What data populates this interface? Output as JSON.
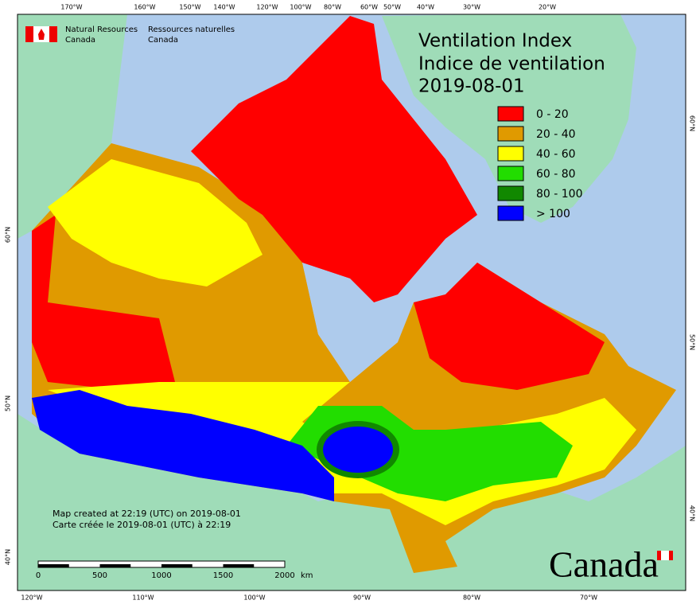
{
  "header": {
    "org_en": [
      "Natural Resources",
      "Canada"
    ],
    "org_fr": [
      "Ressources naturelles",
      "Canada"
    ]
  },
  "title": [
    "Ventilation Index",
    "Indice de ventilation",
    "2019-08-01"
  ],
  "legend": [
    {
      "label": "0 - 20",
      "color": "#ff0000"
    },
    {
      "label": "20 - 40",
      "color": "#e09a00"
    },
    {
      "label": "40 - 60",
      "color": "#ffff00"
    },
    {
      "label": "60 - 80",
      "color": "#22dd00"
    },
    {
      "label": "80 - 100",
      "color": "#118800"
    },
    {
      "label": "> 100",
      "color": "#0000ff"
    }
  ],
  "graticule": {
    "top": [
      "170°W",
      "160°W",
      "150°W",
      "140°W",
      "120°W",
      "100°W",
      "80°W",
      "60°W",
      "50°W",
      "40°W",
      "30°W",
      "20°W"
    ],
    "bottom": [
      "120°W",
      "110°W",
      "100°W",
      "90°W",
      "80°W",
      "70°W"
    ],
    "left": [
      "60°N",
      "50°N",
      "40°N"
    ],
    "right": [
      "60°N",
      "50°N",
      "40°N"
    ]
  },
  "notes": [
    "Map created at 22:19 (UTC) on 2019-08-01",
    "Carte créée le 2019-08-01 (UTC) à 22:19"
  ],
  "scale_bar": {
    "labels": [
      "0",
      "500",
      "1000",
      "1500",
      "2000"
    ],
    "unit": "km"
  },
  "wordmark": "Canada"
}
